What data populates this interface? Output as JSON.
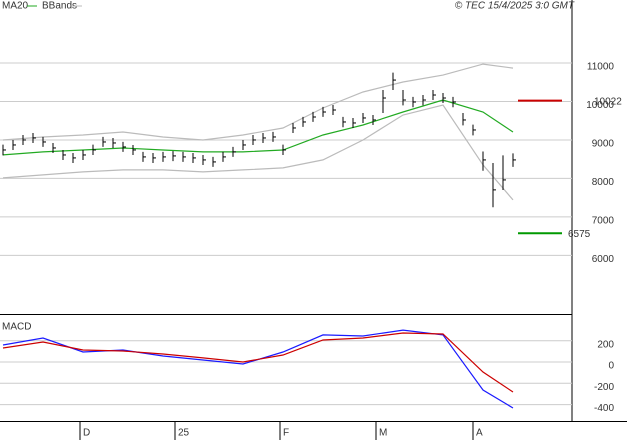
{
  "chart_data": [
    {
      "type": "ohlc",
      "legend": [
        {
          "text": "MA20",
          "color": "#22aa22"
        },
        {
          "text": "BBands",
          "color": "#bbbbbb"
        }
      ],
      "caption": "© TEC 15/4/2025 3:0 GMT",
      "xlim": [
        -0.3,
        56.9
      ],
      "ylim": [
        4500,
        12640
      ],
      "yticks": [
        6000,
        7000,
        8000,
        9000,
        10000,
        11000
      ],
      "grid": true,
      "bar_color": "#000000",
      "close": [
        8740,
        8870,
        9000,
        9052,
        8948,
        8792,
        8610,
        8533,
        8610,
        8740,
        8948,
        8922,
        8818,
        8740,
        8559,
        8533,
        8559,
        8585,
        8559,
        8533,
        8481,
        8429,
        8559,
        8689,
        8870,
        9000,
        9052,
        9078,
        8740,
        9312,
        9468,
        9597,
        9727,
        9779,
        9468,
        9442,
        9572,
        9520,
        10091,
        10558,
        10039,
        9987,
        10039,
        10169,
        10091,
        9987,
        9520,
        9260,
        8481,
        7702,
        7961,
        8481
      ],
      "high": [
        8880,
        9000,
        9130,
        9180,
        9080,
        8920,
        8740,
        8660,
        8740,
        8880,
        9080,
        9050,
        8950,
        8870,
        8690,
        8660,
        8690,
        8710,
        8690,
        8660,
        8610,
        8560,
        8690,
        8820,
        9000,
        9130,
        9180,
        9210,
        8880,
        9440,
        9600,
        9730,
        9860,
        9910,
        9600,
        9570,
        9700,
        9650,
        10300,
        10750,
        10300,
        10120,
        10170,
        10300,
        10220,
        10120,
        9700,
        9400,
        8700,
        8400,
        8600,
        8650
      ],
      "low": [
        8600,
        8740,
        8870,
        8920,
        8820,
        8660,
        8480,
        8400,
        8480,
        8610,
        8820,
        8790,
        8690,
        8610,
        8430,
        8400,
        8430,
        8450,
        8430,
        8400,
        8350,
        8300,
        8430,
        8560,
        8740,
        8870,
        8920,
        8950,
        8610,
        9180,
        9340,
        9470,
        9600,
        9650,
        9330,
        9310,
        9440,
        9390,
        9700,
        10300,
        9900,
        9850,
        9900,
        10040,
        9960,
        9850,
        9380,
        9120,
        8200,
        7250,
        7700,
        8300
      ],
      "series": [
        {
          "color": "#22aa22",
          "x": [
            0,
            4,
            8,
            12,
            16,
            20,
            24,
            28,
            32,
            36,
            40,
            44,
            48,
            51
          ],
          "values": [
            8611,
            8689,
            8740,
            8792,
            8740,
            8689,
            8689,
            8740,
            9130,
            9390,
            9727,
            10039,
            9727,
            9208
          ]
        },
        {
          "color": "#bbbbbb",
          "x": [
            0,
            4,
            8,
            12,
            16,
            20,
            24,
            28,
            32,
            36,
            40,
            44,
            48,
            51
          ],
          "values": [
            9000,
            9078,
            9130,
            9208,
            9078,
            9000,
            9130,
            9312,
            9831,
            10247,
            10507,
            10688,
            10974,
            10870
          ]
        },
        {
          "color": "#bbbbbb",
          "x": [
            0,
            4,
            8,
            12,
            16,
            20,
            24,
            28,
            32,
            36,
            40,
            44,
            48,
            51
          ],
          "values": [
            8013,
            8091,
            8169,
            8221,
            8221,
            8169,
            8221,
            8273,
            8481,
            9000,
            9650,
            9909,
            8351,
            7442
          ]
        }
      ],
      "levels": [
        {
          "value": 10022,
          "color": "#cc0000"
        },
        {
          "value": 6575,
          "color": "#009900"
        }
      ]
    },
    {
      "type": "line",
      "title": "MACD",
      "xlim": [
        -0.3,
        56.9
      ],
      "xticks": [
        {
          "value": 7.7,
          "label": "D"
        },
        {
          "value": 17.2,
          "label": "25"
        },
        {
          "value": 27.7,
          "label": "F"
        },
        {
          "value": 37.3,
          "label": "M"
        },
        {
          "value": 47,
          "label": "A"
        }
      ],
      "ylim": [
        -545,
        432
      ],
      "yticks": [
        -400,
        -200,
        0,
        200
      ],
      "grid": true,
      "series": [
        {
          "color": "#1a1aff",
          "x": [
            0,
            4,
            8,
            12,
            16,
            20,
            24,
            28,
            32,
            36,
            40,
            44,
            48,
            51
          ],
          "values": [
            160,
            225,
            94,
            113,
            56,
            19,
            -19,
            94,
            254,
            244,
            300,
            254,
            -263,
            -432
          ]
        },
        {
          "color": "#cc0000",
          "x": [
            0,
            4,
            8,
            12,
            16,
            20,
            24,
            28,
            32,
            36,
            40,
            44,
            48,
            51
          ],
          "values": [
            131,
            188,
            113,
            103,
            75,
            38,
            0,
            66,
            207,
            225,
            272,
            263,
            -94,
            -282
          ]
        }
      ]
    }
  ]
}
